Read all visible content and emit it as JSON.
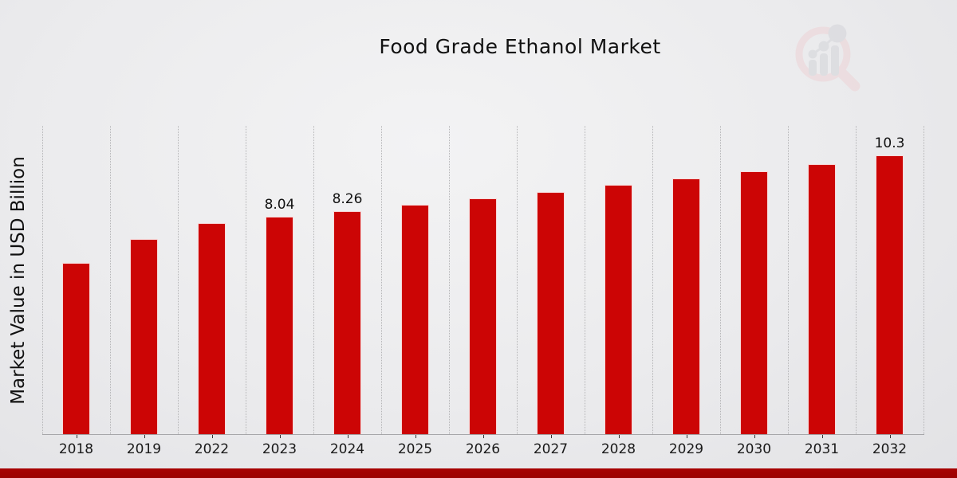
{
  "page": {
    "title": "Food Grade Ethanol Market",
    "ylabel": "Market Value in USD Billion",
    "logo_name": "magnifier-bar-chart-watermark"
  },
  "colors": {
    "bar": "#cc0505",
    "footer_accent": "#a80303",
    "background": "#ebebed",
    "gridline": "#b5b5b7",
    "axis_line": "#a5a5a8",
    "logo_pink": "#edd3d6",
    "logo_gray": "#d3d4d9"
  },
  "chart_data": {
    "type": "bar",
    "title": "Food Grade Ethanol Market",
    "xlabel": "",
    "ylabel": "Market Value in USD Billion",
    "categories": [
      "2018",
      "2019",
      "2022",
      "2023",
      "2024",
      "2025",
      "2026",
      "2027",
      "2028",
      "2029",
      "2030",
      "2031",
      "2032"
    ],
    "values": [
      6.32,
      7.21,
      7.82,
      8.04,
      8.26,
      8.49,
      8.72,
      8.96,
      9.21,
      9.46,
      9.72,
      9.99,
      10.3
    ],
    "bar_point_labels": [
      "",
      "",
      "",
      "8.04",
      "8.26",
      "",
      "",
      "",
      "",
      "",
      "",
      "",
      "10.3"
    ],
    "ylim": [
      0,
      11.4
    ],
    "grid": "vertical-dotted",
    "legend": "none",
    "bar_color": "#cc0505"
  }
}
